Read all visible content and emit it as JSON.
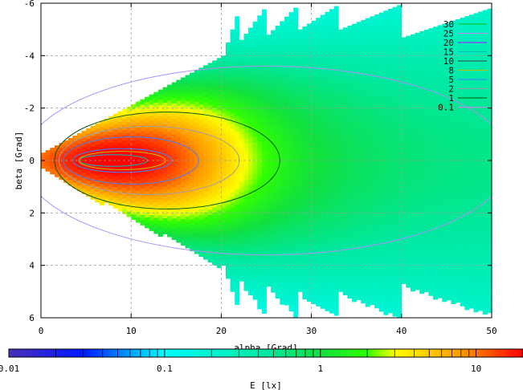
{
  "chart_data": {
    "type": "heatmap",
    "title": "",
    "xlabel": "alpha [Grad]",
    "ylabel": "beta [Grad]",
    "colorbar_label": "E [lx]",
    "xlim": [
      0,
      50
    ],
    "ylim": [
      -6,
      6
    ],
    "y_inverted": true,
    "xticks": [
      "0",
      "10",
      "20",
      "30",
      "40",
      "50"
    ],
    "yticks": [
      "-6",
      "-4",
      "-2",
      "0",
      "2",
      "4",
      "6"
    ],
    "colorbar_range": [
      0.01,
      20
    ],
    "colorbar_scale": "log",
    "colorbar_ticks": [
      "0.01",
      "0.1",
      "1",
      "10"
    ],
    "colorbar_stops": [
      {
        "value": 0.01,
        "color": "#4a2fb8"
      },
      {
        "value": 0.03,
        "color": "#0018ff"
      },
      {
        "value": 0.1,
        "color": "#00ffff"
      },
      {
        "value": 0.45,
        "color": "#00e8a0"
      },
      {
        "value": 1,
        "color": "#10e040"
      },
      {
        "value": 2,
        "color": "#30ff00"
      },
      {
        "value": 3,
        "color": "#ffff00"
      },
      {
        "value": 8,
        "color": "#ff9a00"
      },
      {
        "value": 20,
        "color": "#ff0000"
      }
    ],
    "grid": true,
    "legend_position": "top-right",
    "contour_levels": [
      {
        "label": "30",
        "color": "#00c000"
      },
      {
        "label": "25",
        "color": "#c080ff"
      },
      {
        "label": "20",
        "color": "#c000ff"
      },
      {
        "label": "15",
        "color": "#00c0c0"
      },
      {
        "label": "10",
        "color": "#404040"
      },
      {
        "label": "8",
        "color": "#c0c000"
      },
      {
        "label": "5",
        "color": "#4080ff"
      },
      {
        "label": "2",
        "color": "#a0a0a0"
      },
      {
        "label": "1",
        "color": "#006000"
      },
      {
        "label": "0.1",
        "color": "#b090ff"
      }
    ],
    "scan_sections": [
      {
        "x_start": 0,
        "x_end": 20,
        "half_width_start": 0.3,
        "half_width_end": 4
      },
      {
        "x_start": 20,
        "x_end": 22,
        "half_width_start": 4,
        "half_width_end": 6
      },
      {
        "x_start": 22,
        "x_end": 25,
        "half_width_start": 4.6,
        "half_width_end": 6
      },
      {
        "x_start": 25,
        "x_end": 28.5,
        "half_width_start": 4.8,
        "half_width_end": 6
      },
      {
        "x_start": 28.5,
        "x_end": 33,
        "half_width_start": 5,
        "half_width_end": 6
      },
      {
        "x_start": 33,
        "x_end": 40,
        "half_width_start": 5,
        "half_width_end": 6
      },
      {
        "x_start": 40,
        "x_end": 50,
        "half_width_start": 4.7,
        "half_width_end": 5.85
      }
    ],
    "peak": {
      "x": 8,
      "y": 0,
      "value": 20
    }
  }
}
